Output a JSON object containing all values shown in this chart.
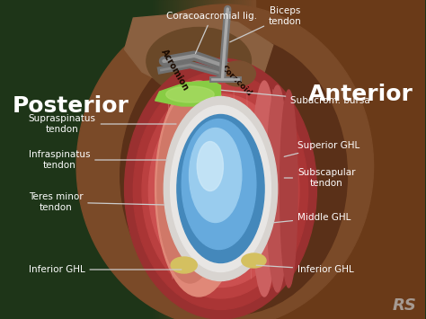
{
  "background_color": "#1e3518",
  "posterior_label": "Posterior",
  "anterior_label": "Anterior",
  "skin_bg": "#7a4a28",
  "skin_mid": "#6a3a18",
  "acromion_color": "#8a6040",
  "acromion_dark": "#5a3818",
  "muscle_colors": [
    "#c04040",
    "#d05858",
    "#e07070",
    "#d06050",
    "#c85050"
  ],
  "stripe_light": "#e8a090",
  "stripe_dark": "#b03030",
  "capsule_color": "#e0dcd8",
  "capsule_inner": "#f0eeec",
  "hh_dark": "#4488bb",
  "hh_mid": "#66aadd",
  "hh_light": "#99ccee",
  "hh_highlight": "#cce8f8",
  "green1": "#88cc44",
  "green2": "#aadd66",
  "yellow_spot": "#d4c060",
  "ligament_color": "#888888",
  "ligament_light": "#aaaaaa",
  "watermark": "RS"
}
